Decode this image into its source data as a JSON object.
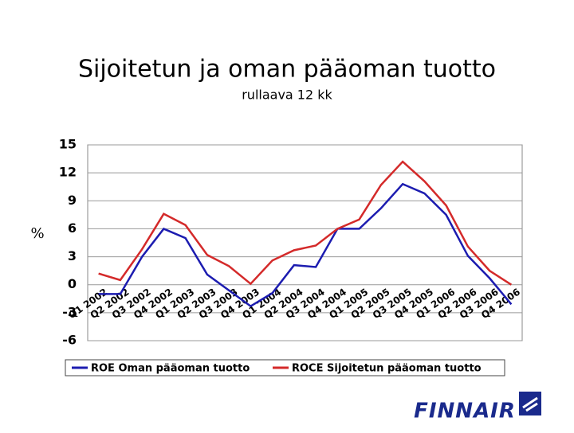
{
  "chart_data": {
    "type": "line",
    "title": "Sijoitetun ja oman pääoman tuotto",
    "subtitle": "rullaava 12 kk",
    "y_label": "%",
    "categories": [
      "Q1 2002",
      "Q2 2002",
      "Q3 2002",
      "Q4 2002",
      "Q1 2003",
      "Q2 2003",
      "Q3 2003",
      "Q4 2003",
      "Q1 2004",
      "Q2 2004",
      "Q3 2004",
      "Q4 2004",
      "Q1 2005",
      "Q2 2005",
      "Q3 2005",
      "Q4 2005",
      "Q1 2006",
      "Q2 2006",
      "Q3 2006",
      "Q4 2006"
    ],
    "series": [
      {
        "name": "ROE Oman pääoman tuotto",
        "color": "#1c1cb0",
        "values": [
          -1,
          -1,
          3,
          6,
          5,
          1.1,
          -0.6,
          -2.3,
          -0.9,
          2.1,
          1.9,
          6,
          6,
          8.2,
          10.8,
          9.8,
          7.5,
          3.1,
          0.7,
          -2.1
        ]
      },
      {
        "name": "ROCE Sijoitetun pääoman tuotto",
        "color": "#d42a2a",
        "values": [
          1.2,
          0.5,
          3.8,
          7.6,
          6.4,
          3.2,
          2,
          0.1,
          2.6,
          3.7,
          4.2,
          6,
          7,
          10.7,
          13.2,
          11.1,
          8.5,
          4.1,
          1.5,
          0
        ]
      }
    ],
    "ylim": [
      -6,
      15
    ],
    "yticks": [
      -6,
      -3,
      0,
      3,
      6,
      9,
      12,
      15
    ],
    "grid": true,
    "legend": "bottom",
    "brand": "FINNAIR"
  }
}
